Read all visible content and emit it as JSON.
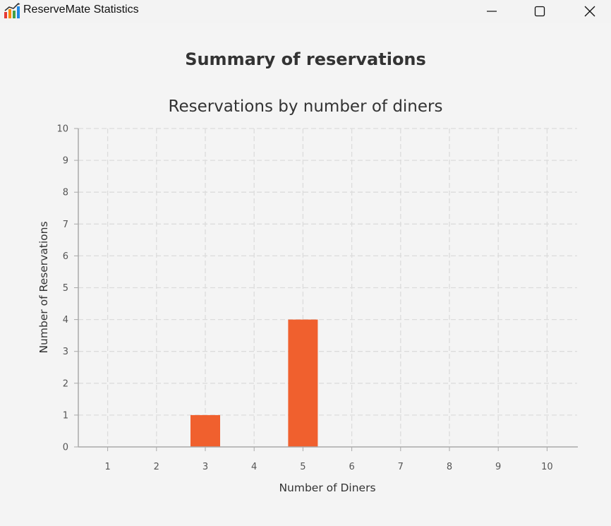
{
  "window": {
    "title": "ReserveMate Statistics",
    "icon": "bar-chart-app-icon",
    "controls": [
      "minimize-icon",
      "maximize-icon",
      "close-icon"
    ]
  },
  "page": {
    "heading": "Summary of reservations"
  },
  "colors": {
    "bar": "#f0602e",
    "grid": "#dcdcdc",
    "axis": "#a9a9a9",
    "background": "#f4f4f4"
  },
  "chart_data": {
    "type": "bar",
    "title": "Reservations by number of diners",
    "xlabel": "Number of Diners",
    "ylabel": "Number of Reservations",
    "categories": [
      "1",
      "2",
      "3",
      "4",
      "5",
      "6",
      "7",
      "8",
      "9",
      "10"
    ],
    "values": [
      0,
      0,
      1,
      0,
      4,
      0,
      0,
      0,
      0,
      0
    ],
    "ylim": [
      0,
      10
    ],
    "yticks": [
      "0",
      "1",
      "2",
      "3",
      "4",
      "5",
      "6",
      "7",
      "8",
      "9",
      "10"
    ],
    "grid": true,
    "legend": "none"
  }
}
